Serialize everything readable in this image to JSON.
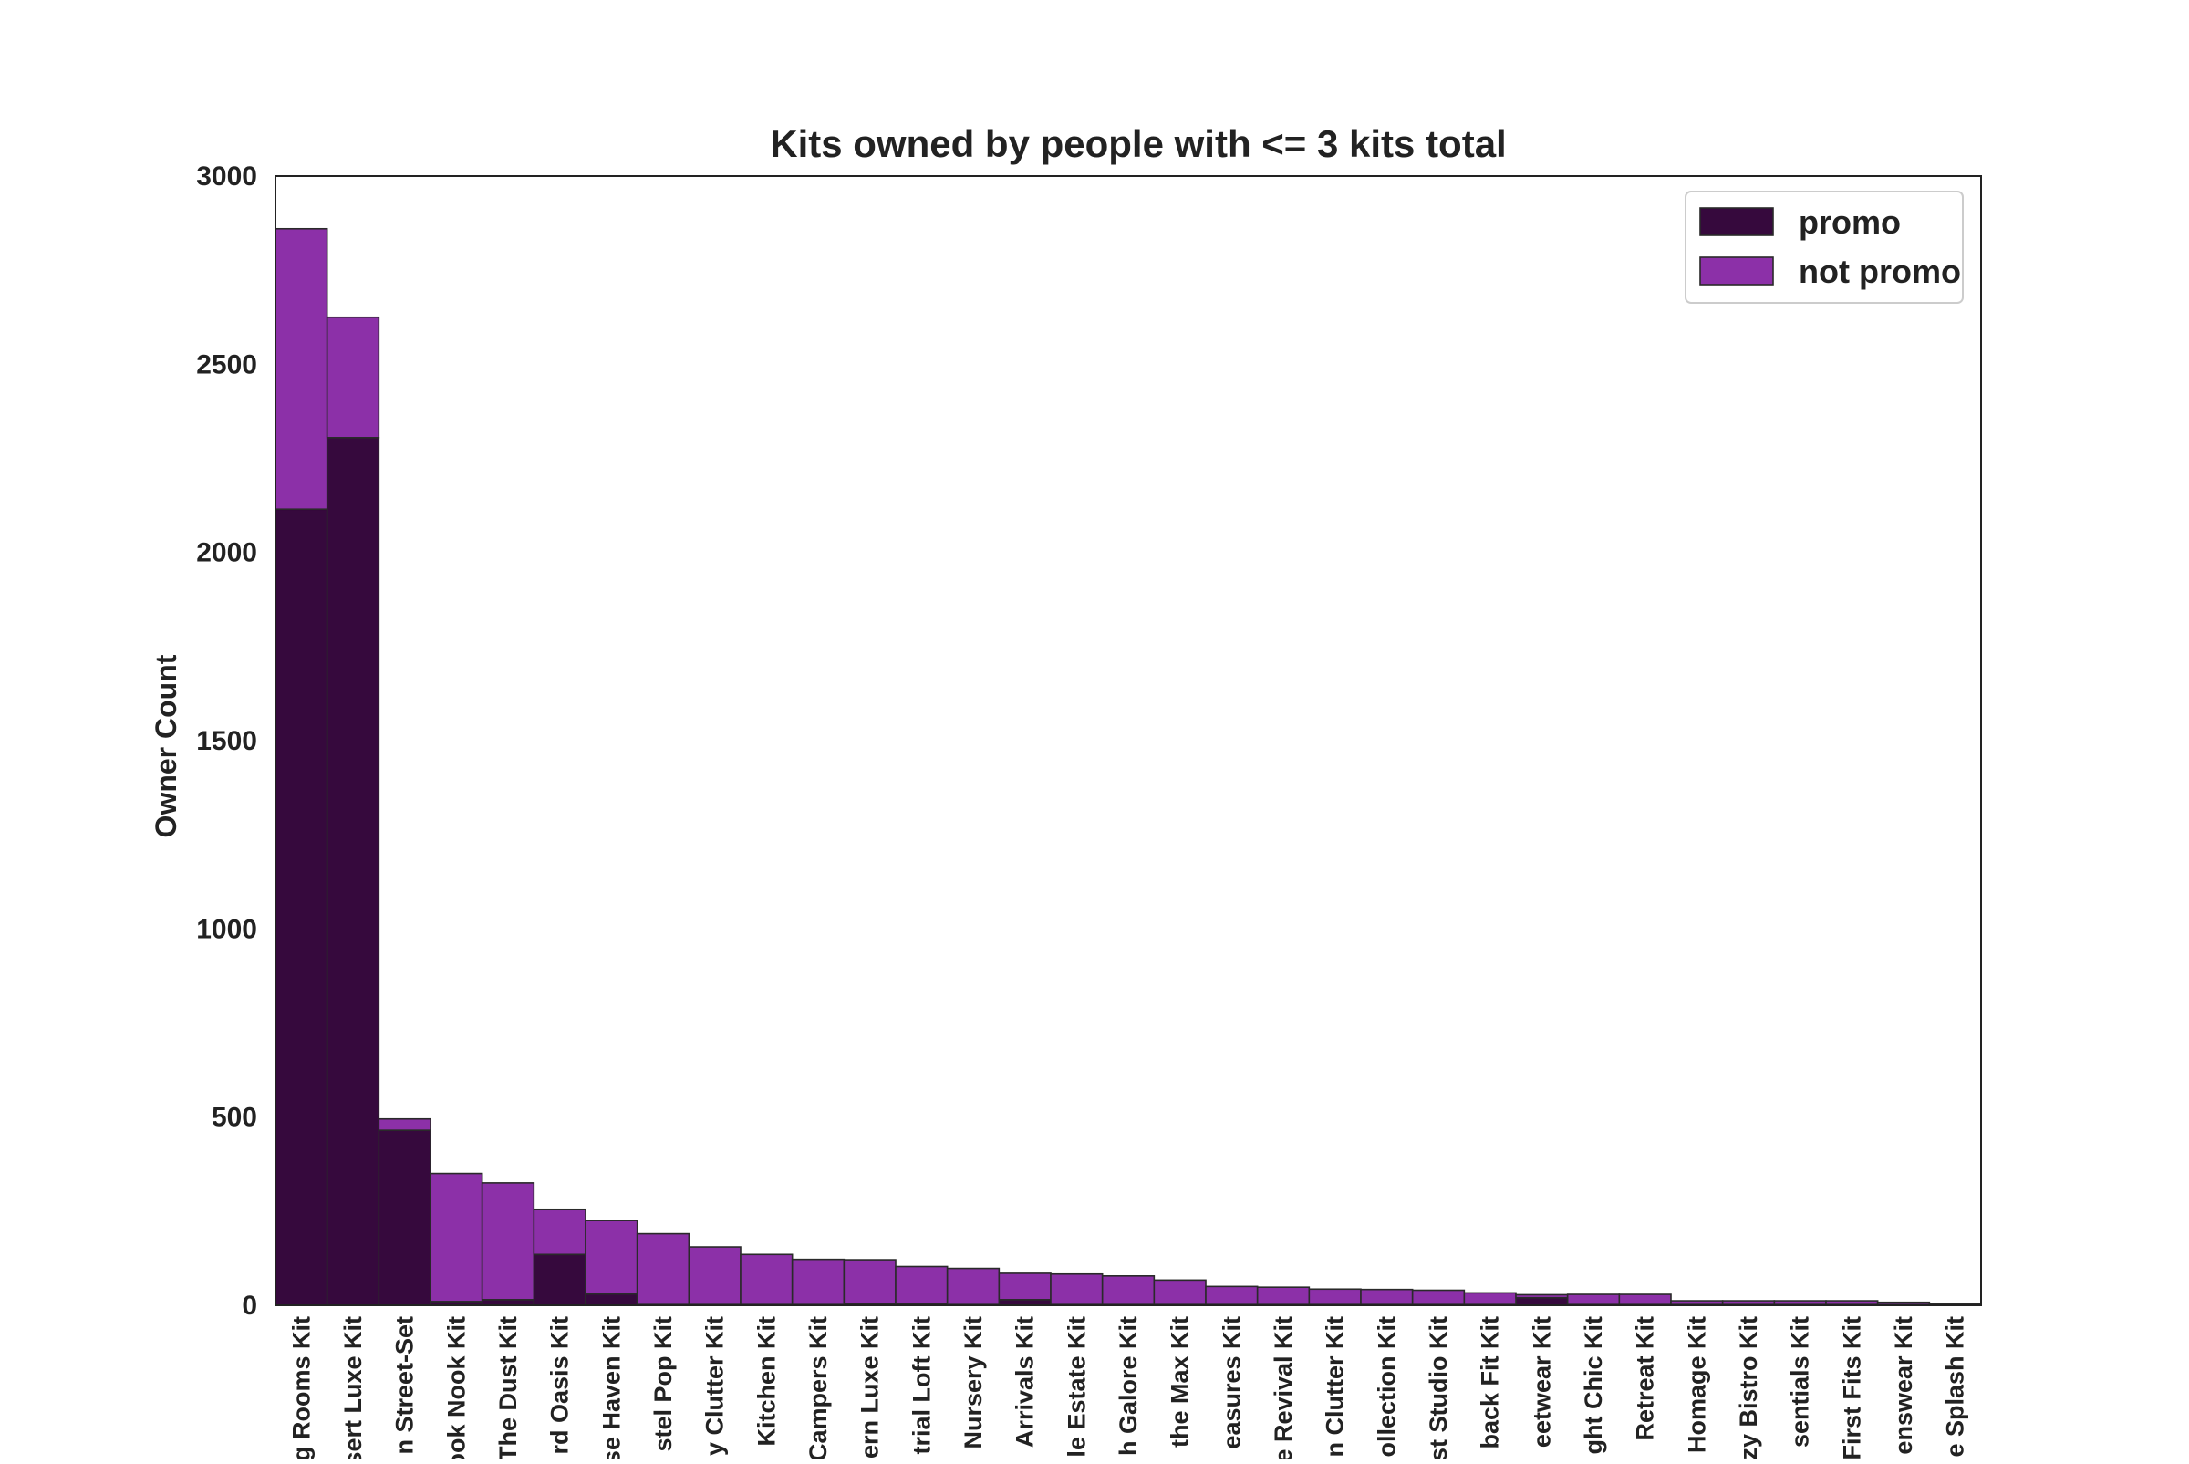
{
  "chart_data": {
    "type": "bar",
    "stacked": true,
    "title": "Kits owned by people with <= 3 kits total",
    "xlabel": "",
    "ylabel": "Owner Count",
    "ylim": [
      0,
      3000
    ],
    "yticks": [
      0,
      500,
      1000,
      1500,
      2000,
      2500,
      3000
    ],
    "grid": false,
    "legend_position": "top-right",
    "categories": [
      "g Rooms Kit",
      "sert Luxe Kit",
      "n Street-Set",
      "ook Nook Kit",
      "The Dust Kit",
      "rd Oasis Kit",
      "se Haven Kit",
      "stel Pop Kit",
      "y Clutter Kit",
      "Kitchen Kit",
      "Campers Kit",
      "ern Luxe Kit",
      "trial Loft Kit",
      "Nursery Kit",
      "Arrivals Kit",
      "le Estate Kit",
      "h Galore Kit",
      "the Max Kit",
      "easures Kit",
      "e Revival Kit",
      "n Clutter Kit",
      "ollection Kit",
      "st Studio Kit",
      "back Fit Kit",
      "eetwear Kit",
      "ght Chic Kit",
      "Retreat Kit",
      "Homage Kit",
      "zy Bistro Kit",
      "sentials Kit",
      "First Fits Kit",
      "enswear Kit",
      "e Splash Kit"
    ],
    "series": [
      {
        "name": "promo",
        "color": "#36093d",
        "values": [
          2115,
          2305,
          465,
          10,
          15,
          135,
          30,
          2,
          2,
          2,
          2,
          5,
          5,
          2,
          15,
          2,
          2,
          2,
          2,
          2,
          2,
          2,
          2,
          2,
          20,
          2,
          2,
          2,
          2,
          2,
          2,
          2,
          2
        ]
      },
      {
        "name": "not promo",
        "color": "#8c30a8",
        "values": [
          745,
          320,
          30,
          340,
          310,
          120,
          195,
          188,
          153,
          133,
          120,
          116,
          98,
          96,
          70,
          81,
          76,
          65,
          48,
          46,
          41,
          40,
          38,
          31,
          8,
          27,
          27,
          10,
          10,
          10,
          10,
          6,
          3
        ]
      }
    ]
  }
}
